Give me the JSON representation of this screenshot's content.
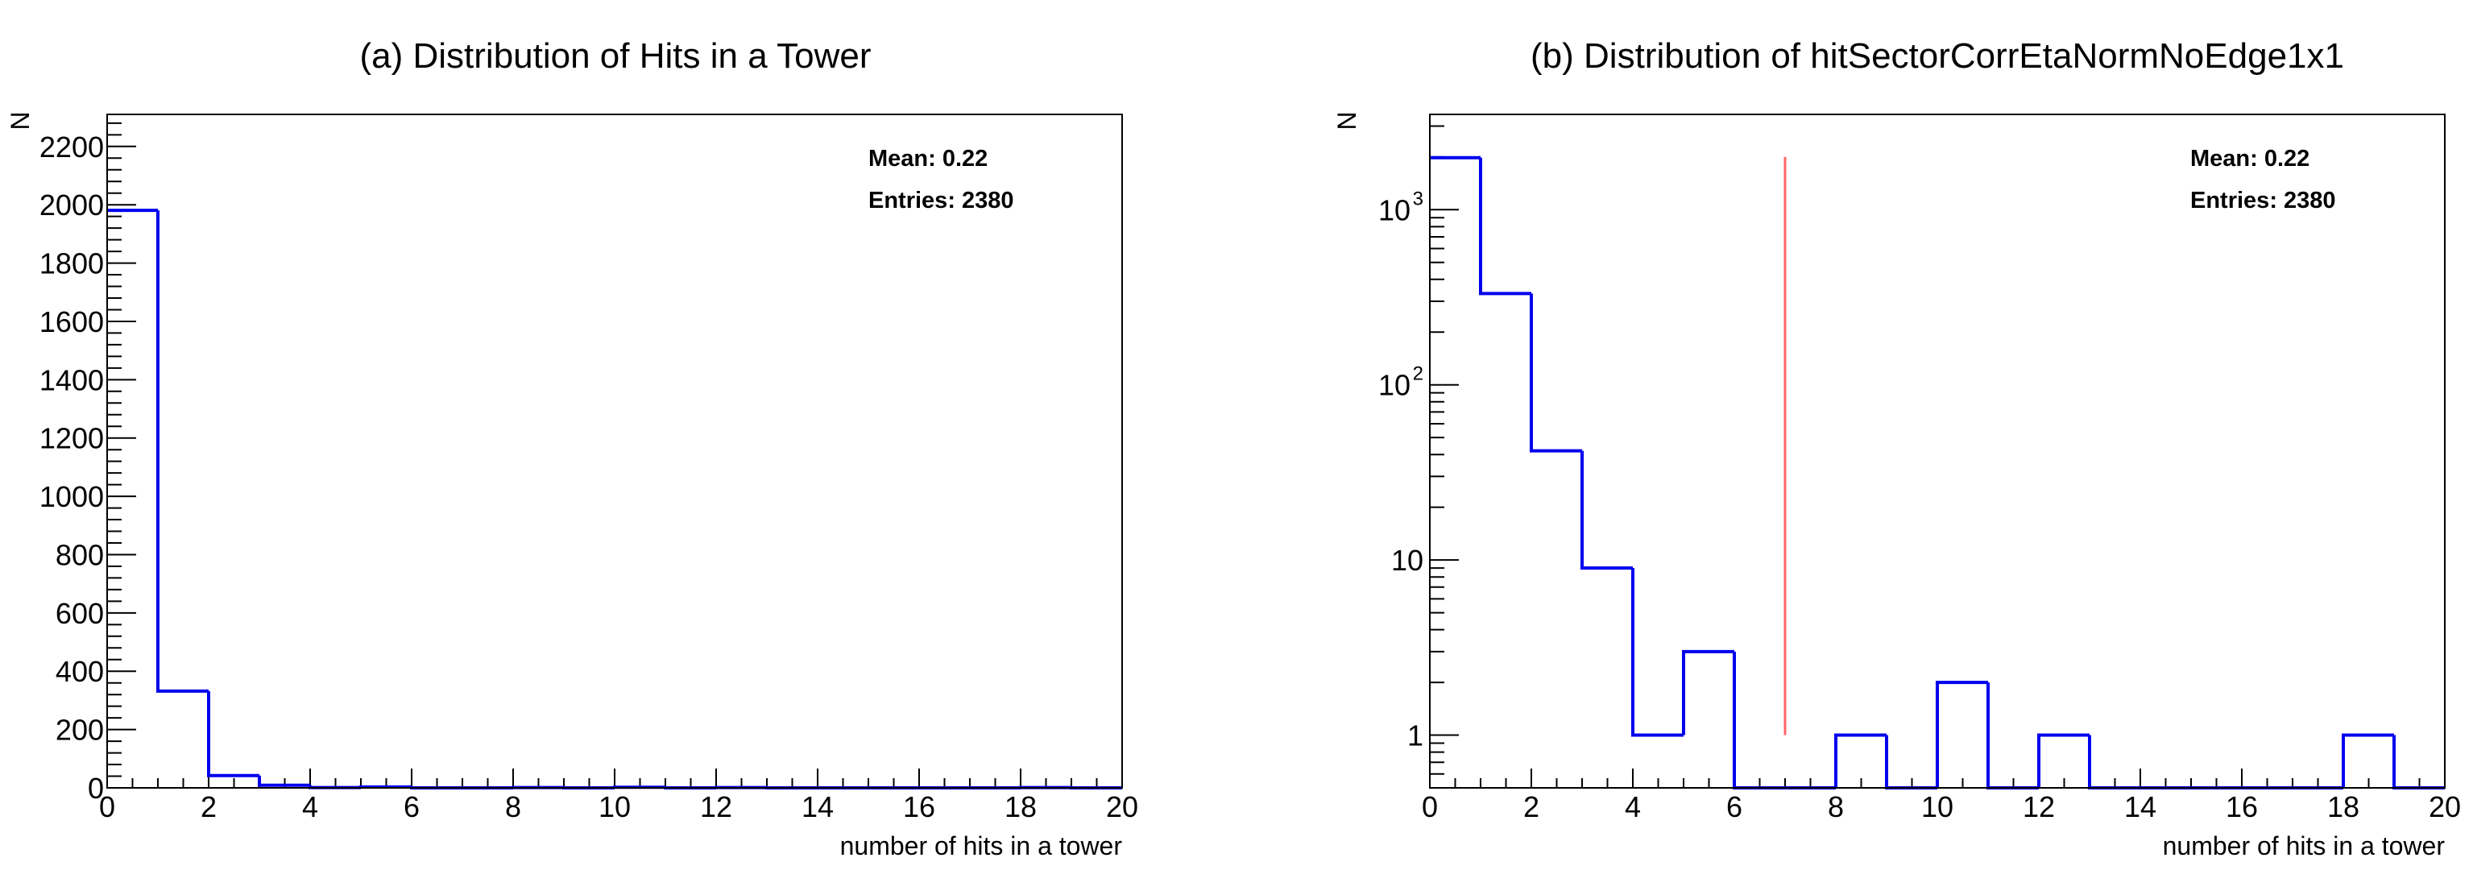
{
  "chart_data": [
    {
      "type": "histogram",
      "title": "(a) Distribution of Hits in a Tower",
      "xlabel": "number of hits in a tower",
      "ylabel": "N",
      "xlim": [
        0,
        20
      ],
      "ylim": [
        0,
        2310
      ],
      "yscale": "linear",
      "xticks": [
        0,
        2,
        4,
        6,
        8,
        10,
        12,
        14,
        16,
        18,
        20
      ],
      "yticks": [
        0,
        200,
        400,
        600,
        800,
        1000,
        1200,
        1400,
        1600,
        1800,
        2000,
        2200
      ],
      "bin_edges": [
        0,
        1,
        2,
        3,
        4,
        5,
        6,
        7,
        8,
        9,
        10,
        11,
        12,
        13,
        14,
        15,
        16,
        17,
        18,
        19,
        20
      ],
      "values": [
        1981,
        332,
        42,
        9,
        1,
        3,
        0,
        0,
        1,
        0,
        2,
        0,
        1,
        0,
        0,
        0,
        0,
        0,
        1,
        0
      ],
      "stats": {
        "mean": "Mean: 0.22",
        "entries": "Entries: 2380"
      },
      "color": "#0000ee"
    },
    {
      "type": "histogram",
      "title": "(b) Distribution of hitSectorCorrEtaNormNoEdge1x1",
      "xlabel": "number of hits in a tower",
      "ylabel": "N",
      "xlim": [
        0,
        20
      ],
      "ylim": [
        0.5,
        3500
      ],
      "yscale": "log",
      "xticks": [
        0,
        2,
        4,
        6,
        8,
        10,
        12,
        14,
        16,
        18,
        20
      ],
      "yticks": [
        {
          "value": 1,
          "label": "1"
        },
        {
          "value": 10,
          "label": "10"
        },
        {
          "value": 100,
          "label": "10",
          "exp": "2"
        },
        {
          "value": 1000,
          "label": "10",
          "exp": "3"
        }
      ],
      "bin_edges": [
        0,
        1,
        2,
        3,
        4,
        5,
        6,
        7,
        8,
        9,
        10,
        11,
        12,
        13,
        14,
        15,
        16,
        17,
        18,
        19,
        20
      ],
      "values": [
        1981,
        332,
        42,
        9,
        1,
        3,
        0,
        0,
        1,
        0,
        2,
        0,
        1,
        0,
        0,
        0,
        0,
        0,
        1,
        0
      ],
      "stats": {
        "mean": "Mean: 0.22",
        "entries": "Entries: 2380"
      },
      "annotation": {
        "type": "vline",
        "x": 7,
        "y_from": 1,
        "y_to": 2000,
        "color": "#ff6666"
      },
      "color": "#0000ee"
    }
  ]
}
